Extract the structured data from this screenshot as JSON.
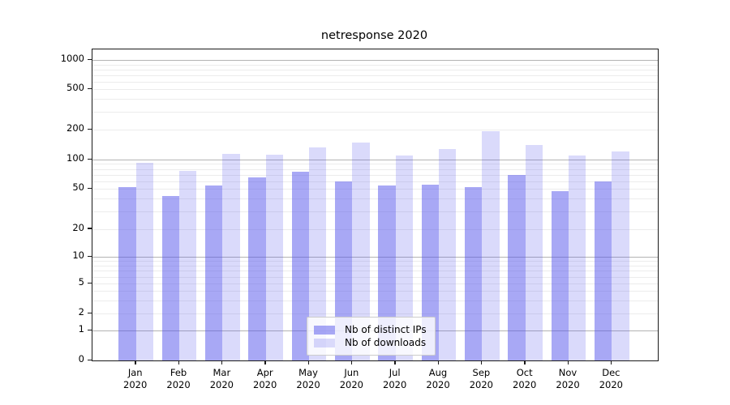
{
  "chart_data": {
    "type": "bar",
    "title": "netresponse 2020",
    "yscale": "symlog",
    "ylim": [
      0,
      1000
    ],
    "grid": true,
    "legend_position": "lower center",
    "yticks": [
      "1000",
      "500",
      "200",
      "100",
      "50",
      "20",
      "10",
      "5",
      "2",
      "1",
      "0"
    ],
    "x": [
      {
        "month": "Jan",
        "year": "2020"
      },
      {
        "month": "Feb",
        "year": "2020"
      },
      {
        "month": "Mar",
        "year": "2020"
      },
      {
        "month": "Apr",
        "year": "2020"
      },
      {
        "month": "May",
        "year": "2020"
      },
      {
        "month": "Jun",
        "year": "2020"
      },
      {
        "month": "Jul",
        "year": "2020"
      },
      {
        "month": "Aug",
        "year": "2020"
      },
      {
        "month": "Sep",
        "year": "2020"
      },
      {
        "month": "Oct",
        "year": "2020"
      },
      {
        "month": "Nov",
        "year": "2020"
      },
      {
        "month": "Dec",
        "year": "2020"
      }
    ],
    "series": [
      {
        "name": "Nb of distinct IPs",
        "color": "rgba(81,81,235,0.5)",
        "color_hex_on_white": "#a8a8f5",
        "values": [
          52,
          42,
          54,
          66,
          75,
          60,
          54,
          55,
          52,
          70,
          47,
          60
        ]
      },
      {
        "name": "Nb of downloads",
        "color": "rgba(81,81,235,0.21)",
        "color_hex_on_white": "#d9d9f8",
        "values": [
          92,
          77,
          114,
          112,
          132,
          150,
          109,
          127,
          195,
          140,
          109,
          120
        ]
      }
    ]
  }
}
